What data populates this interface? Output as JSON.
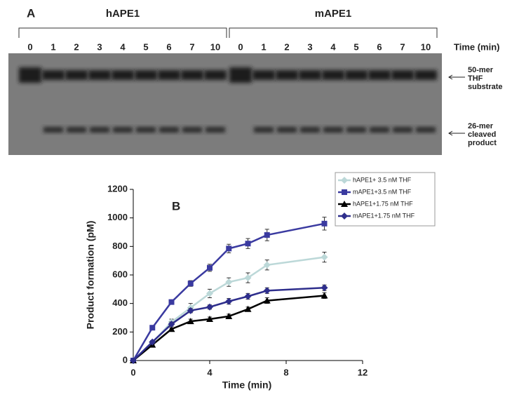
{
  "panel_a": {
    "label": "A",
    "groups": [
      {
        "name": "hAPE1",
        "lanes": [
          "0",
          "1",
          "2",
          "3",
          "4",
          "5",
          "6",
          "7",
          "10"
        ]
      },
      {
        "name": "mAPE1",
        "lanes": [
          "0",
          "1",
          "2",
          "3",
          "4",
          "5",
          "6",
          "7",
          "10"
        ]
      }
    ],
    "time_label": "Time (min)",
    "substrate_label": [
      "50-mer",
      "THF",
      "substrate"
    ],
    "product_label": [
      "26-mer",
      "cleaved",
      "product"
    ]
  },
  "chart_data": {
    "type": "line",
    "panel_label": "B",
    "x_label": "Time (min)",
    "y_label": "Product formation (pM)",
    "x": [
      0,
      1,
      2,
      3,
      4,
      5,
      6,
      7,
      10
    ],
    "xlim": [
      0,
      12
    ],
    "xticks": [
      0,
      4,
      8,
      12
    ],
    "ylim": [
      0,
      1200
    ],
    "yticks": [
      0,
      200,
      400,
      600,
      800,
      1000,
      1200
    ],
    "grid": false,
    "series": [
      {
        "name": "hAPE1+ 3.5 nM THF",
        "color": "#bcd8d8",
        "marker": "diamond",
        "values": [
          0,
          125,
          270,
          370,
          470,
          550,
          580,
          670,
          725
        ],
        "errors": [
          0,
          15,
          20,
          30,
          30,
          30,
          35,
          35,
          35
        ]
      },
      {
        "name": "mAPE1+3.5 nM THF",
        "color": "#3a3aa0",
        "marker": "square",
        "values": [
          0,
          230,
          410,
          540,
          650,
          785,
          820,
          880,
          960
        ],
        "errors": [
          0,
          10,
          15,
          20,
          25,
          30,
          35,
          40,
          45
        ]
      },
      {
        "name": "hAPE1+1.75 nM THF",
        "color": "#000000",
        "marker": "triangle",
        "values": [
          0,
          110,
          220,
          275,
          290,
          310,
          360,
          420,
          455
        ],
        "errors": [
          0,
          10,
          10,
          15,
          15,
          15,
          15,
          20,
          20
        ]
      },
      {
        "name": "mAPE1+1.75 nM THF",
        "color": "#2e2e8c",
        "marker": "diamond",
        "values": [
          0,
          130,
          255,
          350,
          375,
          415,
          450,
          490,
          510
        ],
        "errors": [
          0,
          10,
          15,
          15,
          15,
          20,
          20,
          20,
          20
        ]
      }
    ]
  }
}
